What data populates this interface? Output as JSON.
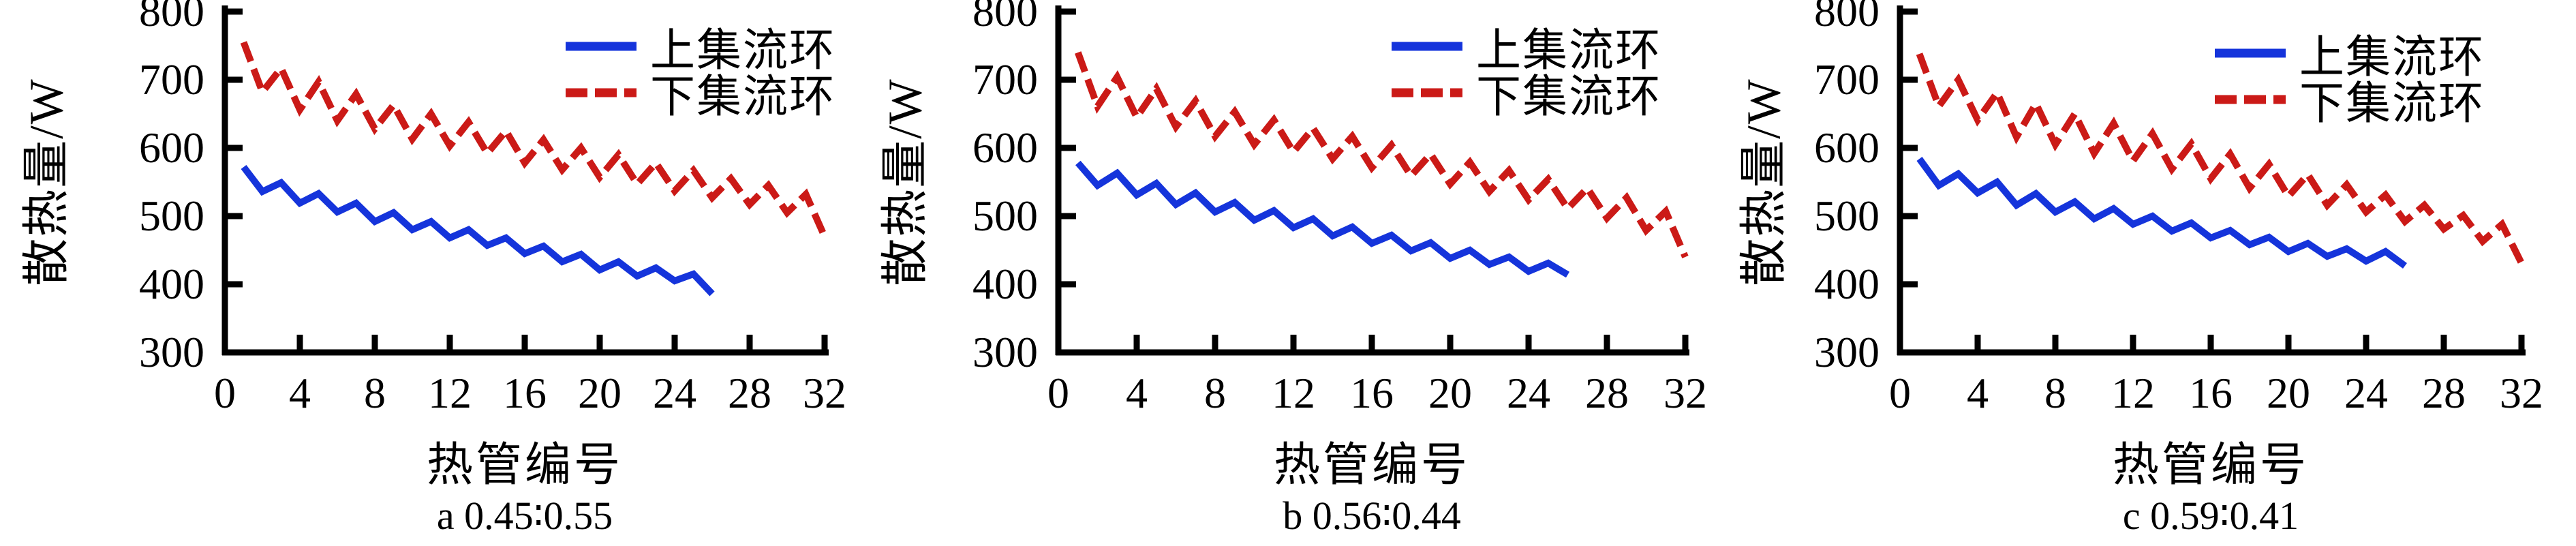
{
  "figure": {
    "background": "#ffffff",
    "text_color": "#000000",
    "axis_color": "#000000",
    "series_colors": {
      "upper": "#1534db",
      "lower": "#cb1a17"
    }
  },
  "chart_data": [
    {
      "type": "line",
      "title": "a 0.45∶0.55",
      "xlabel": "热管编号",
      "ylabel": "散热量/W",
      "xlim": [
        0,
        32
      ],
      "ylim": [
        300,
        800
      ],
      "x_ticks": [
        0,
        4,
        8,
        12,
        16,
        20,
        24,
        28,
        32
      ],
      "y_ticks": [
        300,
        400,
        500,
        600,
        700,
        800
      ],
      "grid": false,
      "legend_position": "top-right",
      "x_start": 1,
      "series": [
        {
          "name": "上集流环",
          "style": "solid",
          "color": "#1534db",
          "values": [
            572,
            536,
            549,
            519,
            533,
            506,
            519,
            492,
            505,
            480,
            492,
            468,
            480,
            457,
            468,
            445,
            456,
            433,
            444,
            421,
            433,
            412,
            424,
            405,
            415,
            386
          ]
        },
        {
          "name": "下集流环",
          "style": "dashed",
          "color": "#cb1a17",
          "values": [
            755,
            682,
            717,
            656,
            697,
            640,
            679,
            628,
            663,
            613,
            650,
            603,
            638,
            592,
            625,
            578,
            612,
            568,
            600,
            557,
            590,
            547,
            578,
            537,
            567,
            527,
            555,
            517,
            545,
            505,
            532,
            470
          ]
        }
      ]
    },
    {
      "type": "line",
      "title": "b 0.56∶0.44",
      "xlabel": "热管编号",
      "ylabel": "散热量/W",
      "xlim": [
        0,
        32
      ],
      "ylim": [
        300,
        800
      ],
      "x_ticks": [
        0,
        4,
        8,
        12,
        16,
        20,
        24,
        28,
        32
      ],
      "y_ticks": [
        300,
        400,
        500,
        600,
        700,
        800
      ],
      "grid": false,
      "legend_position": "top-right",
      "x_start": 1,
      "series": [
        {
          "name": "上集流环",
          "style": "solid",
          "color": "#1534db",
          "values": [
            578,
            545,
            563,
            531,
            548,
            517,
            534,
            506,
            520,
            494,
            508,
            483,
            496,
            471,
            484,
            460,
            472,
            449,
            461,
            438,
            450,
            429,
            440,
            419,
            431,
            414
          ]
        },
        {
          "name": "下集流环",
          "style": "dashed",
          "color": "#cb1a17",
          "values": [
            740,
            661,
            704,
            645,
            687,
            631,
            669,
            617,
            653,
            605,
            641,
            594,
            629,
            584,
            617,
            571,
            604,
            559,
            591,
            547,
            579,
            536,
            567,
            524,
            554,
            511,
            541,
            497,
            527,
            479,
            507,
            440
          ]
        }
      ]
    },
    {
      "type": "line",
      "title": "c 0.59∶0.41",
      "xlabel": "热管编号",
      "ylabel": "散热量/W",
      "xlim": [
        0,
        32
      ],
      "ylim": [
        300,
        800
      ],
      "x_ticks": [
        0,
        4,
        8,
        12,
        16,
        20,
        24,
        28,
        32
      ],
      "y_ticks": [
        300,
        400,
        500,
        600,
        700,
        800
      ],
      "grid": false,
      "legend_position": "top-right",
      "x_start": 1,
      "series": [
        {
          "name": "上集流环",
          "style": "solid",
          "color": "#1534db",
          "values": [
            584,
            545,
            562,
            534,
            550,
            516,
            533,
            506,
            521,
            496,
            511,
            488,
            500,
            478,
            490,
            468,
            479,
            458,
            469,
            448,
            460,
            441,
            452,
            434,
            448,
            427
          ]
        },
        {
          "name": "下集流环",
          "style": "dashed",
          "color": "#cb1a17",
          "values": [
            738,
            661,
            700,
            641,
            681,
            616,
            665,
            605,
            650,
            592,
            636,
            581,
            621,
            569,
            606,
            555,
            591,
            541,
            576,
            529,
            561,
            516,
            546,
            506,
            531,
            492,
            516,
            481,
            501,
            463,
            488,
            431
          ]
        }
      ]
    }
  ]
}
